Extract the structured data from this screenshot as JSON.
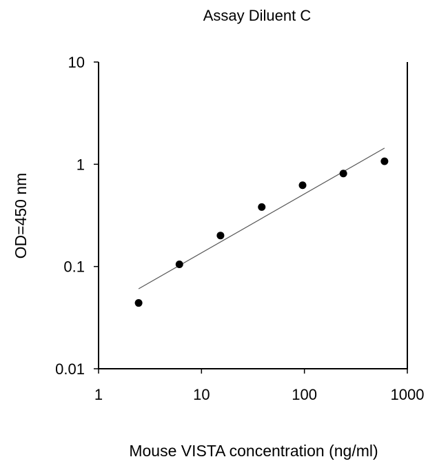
{
  "chart_data": {
    "type": "scatter",
    "title": "Assay Diluent C",
    "xlabel": "Mouse VISTA concentration (ng/ml)",
    "ylabel": "OD=450 nm",
    "xscale": "log",
    "yscale": "log",
    "xlim": [
      1,
      1000
    ],
    "ylim": [
      0.01,
      10
    ],
    "xticks": [
      "1",
      "10",
      "100",
      "1000"
    ],
    "yticks": [
      "0.01",
      "0.1",
      "1",
      "10"
    ],
    "grid": false,
    "legend": "none",
    "x": [
      2.45,
      6.1,
      15.3,
      38.5,
      96,
      239,
      600
    ],
    "y": [
      0.044,
      0.105,
      0.201,
      0.382,
      0.624,
      0.812,
      1.07
    ],
    "fit_line": {
      "x": [
        2.45,
        600
      ],
      "y": [
        0.0605,
        1.44
      ]
    },
    "colors": {
      "points": "#000000",
      "fit_line": "#555555"
    }
  }
}
